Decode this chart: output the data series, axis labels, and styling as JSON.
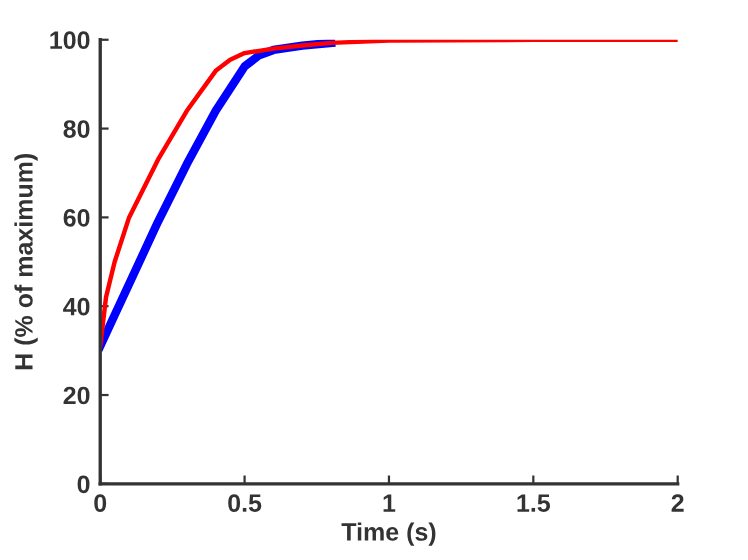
{
  "chart_data": {
    "type": "line",
    "xlabel": "Time (s)",
    "ylabel": "H (% of maximum)",
    "xlim": [
      0,
      2
    ],
    "ylim": [
      0,
      100
    ],
    "xticks": [
      0,
      0.5,
      1,
      1.5,
      2
    ],
    "yticks": [
      0,
      20,
      40,
      60,
      80,
      100
    ],
    "grid": false,
    "legend": false,
    "series": [
      {
        "color": "#0000ff",
        "x": [
          0,
          0.05,
          0.1,
          0.2,
          0.3,
          0.4,
          0.5,
          0.55,
          0.6,
          0.7,
          0.8
        ],
        "values": [
          31,
          38,
          45,
          59,
          72,
          84,
          94,
          96.5,
          97.7,
          98.7,
          99.3
        ]
      },
      {
        "color": "#ff0000",
        "x": [
          0,
          0.02,
          0.05,
          0.1,
          0.2,
          0.3,
          0.4,
          0.45,
          0.5,
          0.6,
          0.7,
          0.8,
          1,
          1.5,
          2
        ],
        "values": [
          31,
          42,
          50,
          60,
          73,
          84,
          93,
          95.5,
          97,
          98,
          98.7,
          99.3,
          99.8,
          100,
          100
        ]
      }
    ]
  }
}
